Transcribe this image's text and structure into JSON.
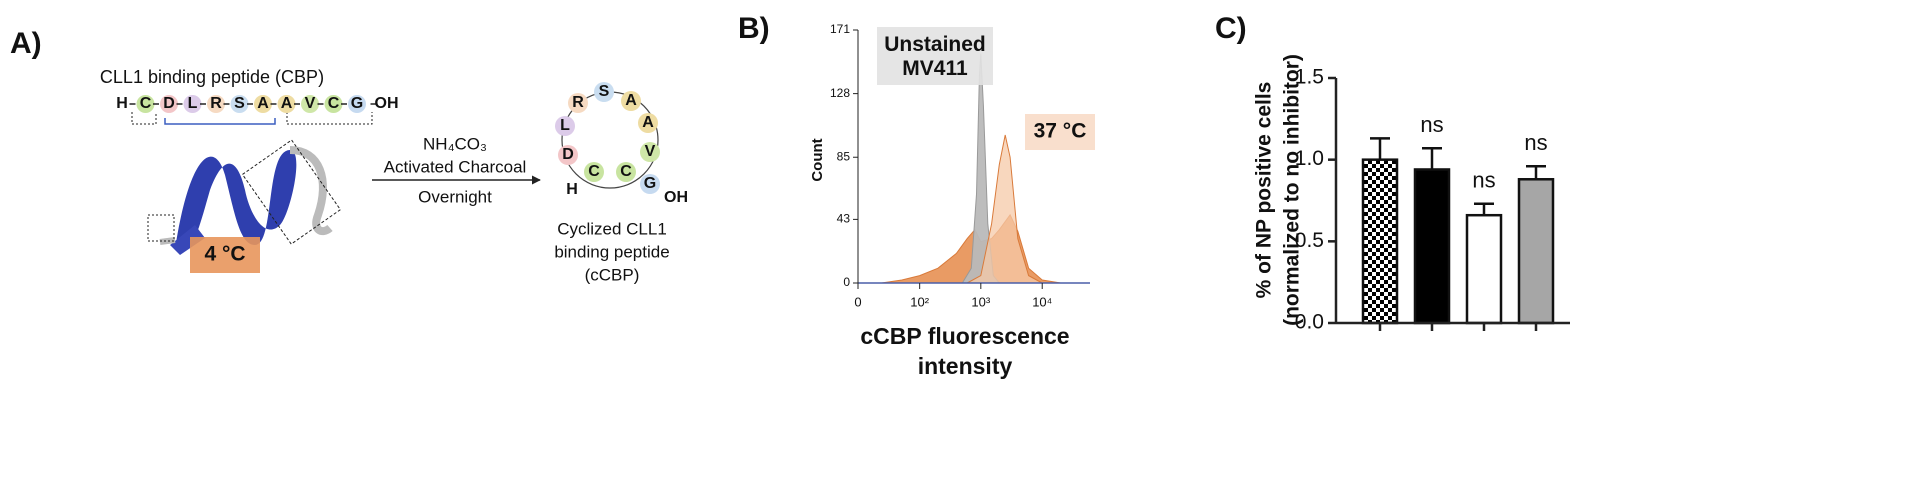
{
  "panel_a": {
    "label": "A)",
    "title": "CLL1 binding peptide (CBP)",
    "linear_sequence": [
      "H",
      "C",
      "D",
      "L",
      "R",
      "S",
      "A",
      "A",
      "V",
      "C",
      "G",
      "OH"
    ],
    "reagents": [
      "NH₄CO₃",
      "Activated Charcoal"
    ],
    "condition": "Overnight",
    "cyclic_sequence": [
      "D",
      "L",
      "R",
      "S",
      "A",
      "A",
      "V",
      "C",
      "C",
      "H",
      "G",
      "OH"
    ],
    "product": [
      "Cyclized CLL1",
      "binding peptide",
      "(cCBP)"
    ]
  },
  "chart_data": [
    {
      "type": "histogram-area",
      "panel_label": "B)",
      "ylabel": "Count",
      "xlabel": [
        "cCBP fluorescence",
        "intensity"
      ],
      "xscale": "biexponential",
      "xlim": [
        0,
        60000
      ],
      "xticks": [
        0,
        {
          "value": 100,
          "label": "10²"
        },
        {
          "value": 1000,
          "label": "10³"
        },
        {
          "value": 10000,
          "label": "10⁴"
        }
      ],
      "ylim": [
        0,
        171
      ],
      "yticks": [
        0,
        43,
        85,
        128,
        171
      ],
      "series": [
        {
          "name": "4 °C",
          "color": "#e8965c",
          "x": [
            20,
            50,
            100,
            200,
            400,
            600,
            800,
            1000,
            1500,
            2000,
            3000,
            4000,
            6000,
            10000,
            20000
          ],
          "values": [
            0,
            2,
            5,
            10,
            20,
            30,
            36,
            28,
            30,
            36,
            46,
            35,
            10,
            2,
            0
          ]
        },
        {
          "name": "Unstained MV411",
          "color": "#b9b9b9",
          "x": [
            500,
            700,
            850,
            950,
            1000,
            1100,
            1300,
            1600,
            2000
          ],
          "values": [
            0,
            10,
            60,
            140,
            155,
            120,
            40,
            5,
            0
          ]
        },
        {
          "name": "37 °C",
          "color": "#f6c9a8",
          "x": [
            600,
            1000,
            1500,
            2000,
            2500,
            3000,
            4000,
            6000,
            10000
          ],
          "values": [
            0,
            5,
            40,
            80,
            100,
            85,
            30,
            5,
            0
          ]
        }
      ]
    },
    {
      "type": "bar",
      "panel_label": "C)",
      "ylabel": [
        "% of NP positive cells",
        "(normalized to no inhibitor)"
      ],
      "categories": [
        null,
        null,
        null,
        null
      ],
      "values": [
        1.0,
        0.94,
        0.66,
        0.88
      ],
      "errors": [
        0.13,
        0.13,
        0.07,
        0.08
      ],
      "fills": [
        "checkerboard",
        "#000000",
        "#ffffff",
        "#a6a6a6"
      ],
      "annotations": [
        null,
        "ns",
        "ns",
        "ns"
      ],
      "ylim": [
        0,
        1.5
      ],
      "yticks": [
        {
          "value": 0,
          "label": "0.0"
        },
        0.5,
        {
          "value": 1,
          "label": "1.0"
        },
        1.5
      ]
    }
  ]
}
